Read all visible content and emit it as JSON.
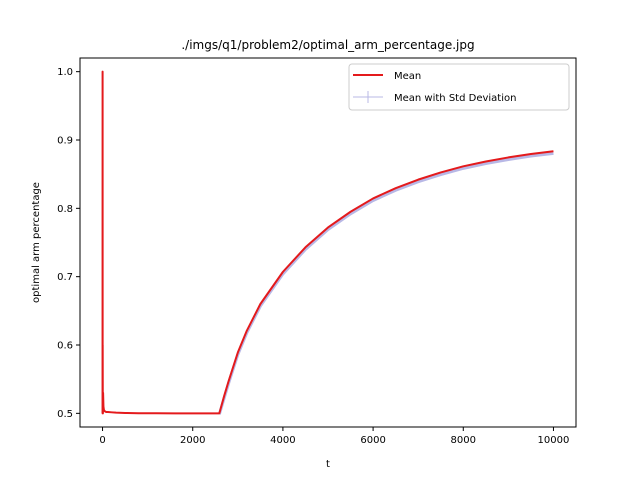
{
  "chart_data": {
    "type": "line",
    "title": "./imgs/q1/problem2/optimal_arm_percentage.jpg",
    "xlabel": "t",
    "ylabel": "optimal arm percentage",
    "xlim": [
      -500,
      10500
    ],
    "ylim": [
      0.48,
      1.02
    ],
    "xticks": [
      0,
      2000,
      4000,
      6000,
      8000,
      10000
    ],
    "xtick_labels": [
      "0",
      "2000",
      "4000",
      "6000",
      "8000",
      "10000"
    ],
    "yticks": [
      0.5,
      0.6,
      0.7,
      0.8,
      0.9,
      1.0
    ],
    "ytick_labels": [
      "0.5",
      "0.6",
      "0.7",
      "0.8",
      "0.9",
      "1.0"
    ],
    "grid": false,
    "legend_position": "top-right",
    "series": [
      {
        "name": "Mean",
        "color": "#e41a1c",
        "x": [
          0,
          1,
          2,
          3,
          5,
          8,
          12,
          20,
          30,
          50,
          80,
          120,
          200,
          300,
          500,
          800,
          1200,
          1600,
          2000,
          2400,
          2590,
          2700,
          2800,
          3000,
          3200,
          3500,
          4000,
          4500,
          5000,
          5500,
          6000,
          6500,
          7000,
          7500,
          8000,
          8500,
          9000,
          9500,
          10000
        ],
        "y": [
          0.5,
          1.0,
          0.5,
          0.6,
          0.52,
          0.5,
          0.53,
          0.51,
          0.505,
          0.503,
          0.502,
          0.502,
          0.5015,
          0.501,
          0.5005,
          0.5002,
          0.5001,
          0.5,
          0.5,
          0.5,
          0.5,
          0.526,
          0.548,
          0.589,
          0.621,
          0.66,
          0.707,
          0.743,
          0.772,
          0.795,
          0.8145,
          0.8295,
          0.842,
          0.8525,
          0.8615,
          0.8685,
          0.8745,
          0.8795,
          0.8835
        ]
      },
      {
        "name": "Mean with Std Deviation",
        "color": "#b8b8e6",
        "x": [
          2590,
          2700,
          2800,
          3000,
          3200,
          3500,
          4000,
          4500,
          5000,
          5500,
          6000,
          6500,
          7000,
          7500,
          8000,
          8500,
          9000,
          9500,
          10000
        ],
        "y": [
          0.4985,
          0.523,
          0.545,
          0.586,
          0.618,
          0.657,
          0.704,
          0.74,
          0.769,
          0.792,
          0.8115,
          0.8265,
          0.839,
          0.8495,
          0.8585,
          0.8655,
          0.8715,
          0.8765,
          0.8805
        ]
      }
    ]
  }
}
